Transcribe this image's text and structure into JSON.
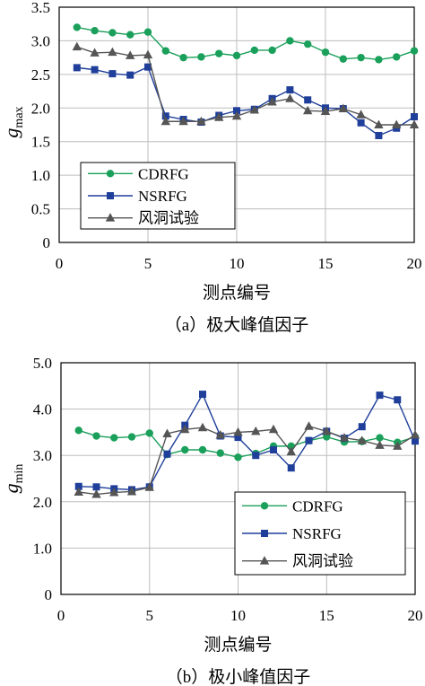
{
  "chart_data": [
    {
      "type": "line",
      "caption": "（a）极大峰值因子",
      "xlabel": "测点编号",
      "ylabel": "g",
      "ylabel_sub": "max",
      "xlim": [
        0,
        20
      ],
      "ylim": [
        0,
        3.5
      ],
      "xticks": [
        0,
        5,
        10,
        15,
        20
      ],
      "yticks": [
        "0",
        "0.5",
        "1.0",
        "1.5",
        "2.0",
        "2.5",
        "3.0",
        "3.5"
      ],
      "yticks_values": [
        0,
        0.5,
        1.0,
        1.5,
        2.0,
        2.5,
        3.0,
        3.5
      ],
      "grid": true,
      "legend_position": "bottom-left",
      "x": [
        1,
        2,
        3,
        4,
        5,
        6,
        7,
        8,
        9,
        10,
        11,
        12,
        13,
        14,
        15,
        16,
        17,
        18,
        19,
        20
      ],
      "series": [
        {
          "name": "CDRFG",
          "color": "#1aa05a",
          "marker": "circle",
          "values": [
            3.2,
            3.15,
            3.12,
            3.09,
            3.13,
            2.85,
            2.75,
            2.76,
            2.81,
            2.78,
            2.86,
            2.86,
            3.0,
            2.95,
            2.83,
            2.73,
            2.75,
            2.72,
            2.76,
            2.85
          ]
        },
        {
          "name": "NSRFG",
          "color": "#1f3f9a",
          "marker": "square",
          "values": [
            2.6,
            2.57,
            2.51,
            2.49,
            2.61,
            1.88,
            1.83,
            1.79,
            1.89,
            1.96,
            1.98,
            2.14,
            2.27,
            2.12,
            2.0,
            1.99,
            1.78,
            1.59,
            1.7,
            1.87
          ]
        },
        {
          "name": "风洞试验",
          "color": "#555555",
          "marker": "triangle",
          "values": [
            2.91,
            2.82,
            2.83,
            2.78,
            2.79,
            1.8,
            1.8,
            1.8,
            1.86,
            1.88,
            1.97,
            2.09,
            2.14,
            1.96,
            1.95,
            1.99,
            1.9,
            1.75,
            1.75,
            1.75
          ]
        }
      ]
    },
    {
      "type": "line",
      "caption": "（b）极小峰值因子",
      "xlabel": "测点编号",
      "ylabel": "g",
      "ylabel_sub": "min",
      "xlim": [
        0,
        20
      ],
      "ylim": [
        0,
        5.0
      ],
      "xticks": [
        0,
        5,
        10,
        15,
        20
      ],
      "yticks": [
        "0",
        "1.0",
        "2.0",
        "3.0",
        "4.0",
        "5.0"
      ],
      "yticks_values": [
        0,
        1.0,
        2.0,
        3.0,
        4.0,
        5.0
      ],
      "grid": true,
      "legend_position": "bottom-right",
      "x": [
        1,
        2,
        3,
        4,
        5,
        6,
        7,
        8,
        9,
        10,
        11,
        12,
        13,
        14,
        15,
        16,
        17,
        18,
        19,
        20
      ],
      "series": [
        {
          "name": "CDRFG",
          "color": "#1aa05a",
          "marker": "circle",
          "values": [
            3.54,
            3.42,
            3.38,
            3.4,
            3.48,
            3.02,
            3.12,
            3.12,
            3.05,
            2.96,
            3.04,
            3.2,
            3.2,
            3.32,
            3.4,
            3.29,
            3.3,
            3.38,
            3.28,
            3.4
          ]
        },
        {
          "name": "NSRFG",
          "color": "#1f3f9a",
          "marker": "square",
          "values": [
            2.33,
            2.32,
            2.28,
            2.26,
            2.32,
            3.03,
            3.65,
            4.32,
            3.42,
            3.39,
            3.0,
            3.12,
            2.73,
            3.32,
            3.52,
            3.37,
            3.62,
            4.3,
            4.2,
            3.31
          ]
        },
        {
          "name": "风洞试验",
          "color": "#555555",
          "marker": "triangle",
          "values": [
            2.21,
            2.16,
            2.2,
            2.22,
            2.31,
            3.47,
            3.56,
            3.6,
            3.44,
            3.5,
            3.52,
            3.56,
            3.08,
            3.63,
            3.52,
            3.38,
            3.32,
            3.22,
            3.2,
            3.44
          ]
        }
      ]
    }
  ]
}
